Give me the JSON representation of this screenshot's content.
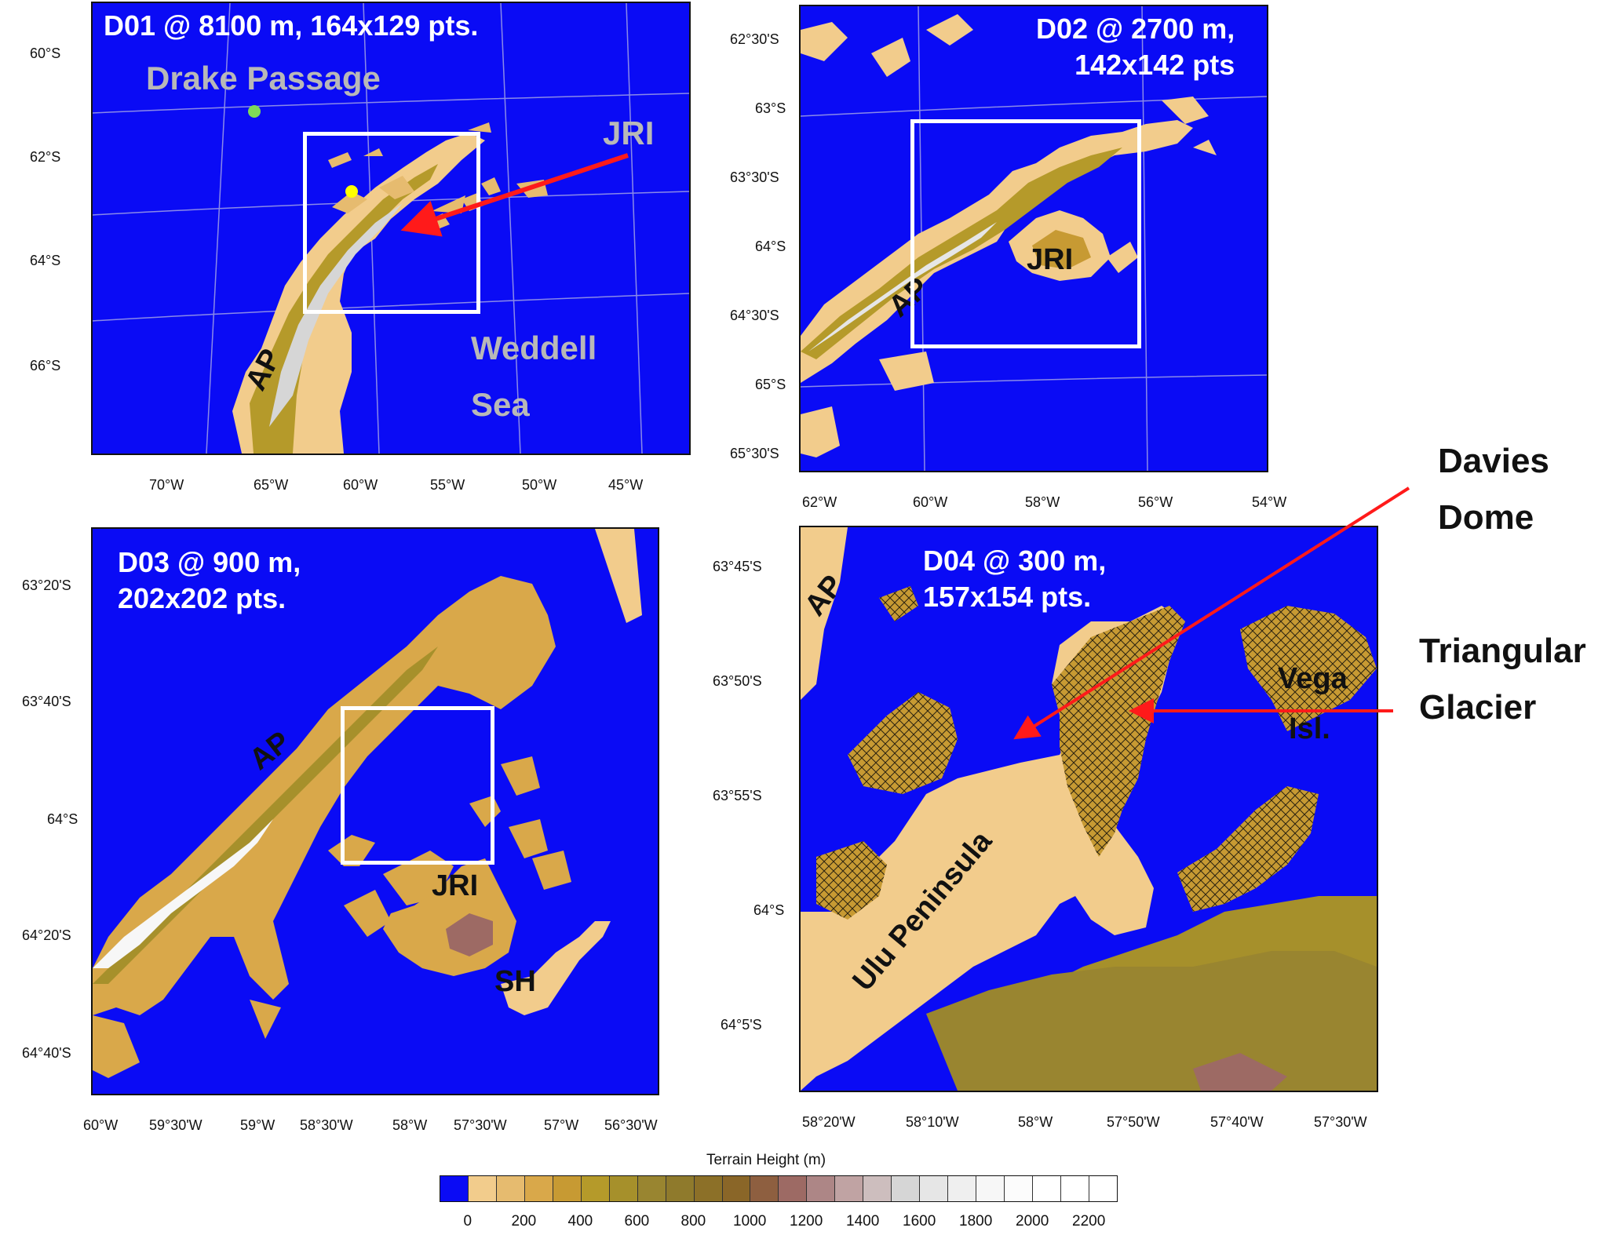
{
  "panels": {
    "d01": {
      "title": "D01 @ 8100 m, 164x129 pts.",
      "labels": {
        "drake": "Drake Passage",
        "jri": "JRI",
        "weddell": "Weddell",
        "sea": "Sea",
        "ap": "AP"
      },
      "lat_ticks": [
        "60°S",
        "62°S",
        "64°S",
        "66°S"
      ],
      "lon_ticks": [
        "70°W",
        "65°W",
        "60°W",
        "55°W",
        "50°W",
        "45°W"
      ],
      "markers": {
        "green": "#7ed957",
        "yellow": "#ffff00"
      }
    },
    "d02": {
      "title": "D02 @ 2700 m,\n142x142 pts",
      "labels": {
        "jri": "JRI",
        "ap": "AP"
      },
      "lat_ticks": [
        "62°30'S",
        "63°S",
        "63°30'S",
        "64°S",
        "64°30'S",
        "65°S",
        "65°30'S"
      ],
      "lon_ticks": [
        "62°W",
        "60°W",
        "58°W",
        "56°W",
        "54°W"
      ]
    },
    "d03": {
      "title": "D03 @ 900 m,\n202x202 pts.",
      "labels": {
        "ap": "AP",
        "jri": "JRI",
        "sh": "SH"
      },
      "lat_ticks": [
        "63°20'S",
        "63°40'S",
        "64°S",
        "64°20'S",
        "64°40'S"
      ],
      "lon_ticks": [
        "60°W",
        "59°30'W",
        "59°W",
        "58°30'W",
        "58°W",
        "57°30'W",
        "57°W",
        "56°30'W"
      ]
    },
    "d04": {
      "title": "D04 @ 300 m,\n157x154 pts.",
      "labels": {
        "ap": "AP",
        "ulu": "Ulu Peninsula",
        "vega": "Vega",
        "isl": "Isl."
      },
      "lat_ticks": [
        "63°45'S",
        "63°50'S",
        "63°55'S",
        "64°S",
        "64°5'S"
      ],
      "lon_ticks": [
        "58°20'W",
        "58°10'W",
        "58°W",
        "57°50'W",
        "57°40'W",
        "57°30'W"
      ]
    }
  },
  "annotations": {
    "davies": "Davies\nDome",
    "triangular": "Triangular\nGlacier",
    "arrow_color": "#ff1a1a"
  },
  "colorbar": {
    "title": "Terrain Height  (m)",
    "ticks": [
      "0",
      "200",
      "400",
      "600",
      "800",
      "1000",
      "1200",
      "1400",
      "1600",
      "1800",
      "2000",
      "2200"
    ],
    "colors": [
      "#0a0bf5",
      "#f2cc8c",
      "#e6bb6f",
      "#d9a84a",
      "#c79a33",
      "#b59a2a",
      "#a6902b",
      "#998530",
      "#8f7a2c",
      "#8c7028",
      "#8a6628",
      "#8e5f40",
      "#9d6a64",
      "#ad8686",
      "#c0a3a3",
      "#cdbebe",
      "#d6d6d6",
      "#e6e6e6",
      "#efefef",
      "#f7f7f7",
      "#fcfcfc",
      "#ffffff",
      "#ffffff",
      "#ffffff"
    ]
  }
}
